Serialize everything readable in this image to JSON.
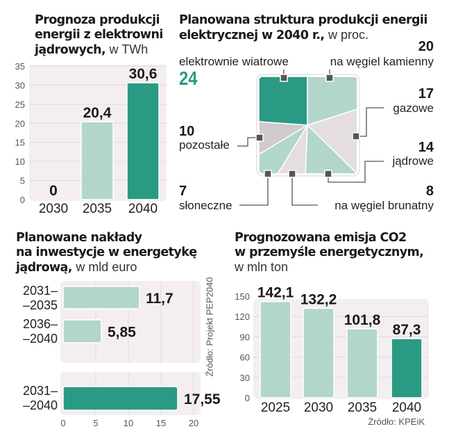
{
  "colors": {
    "dark": "#2a9a85",
    "light": "#b2d6cb",
    "grey_light": "#e4dee1",
    "grey_mid": "#d0cacd",
    "panel_bg": "#f4eef0",
    "grid": "#e2dadd",
    "marker": "#555555"
  },
  "chart_data": [
    {
      "id": "nuclear_production",
      "type": "bar",
      "title": "Prognoza produkcji energii z elektrowni jądrowych,",
      "title_lines": [
        "Prognoza produkcji",
        "energii z elektrowni",
        "jądrowych,"
      ],
      "unit": "w TWh",
      "categories": [
        "2030",
        "2035",
        "2040"
      ],
      "values": [
        0,
        20.4,
        30.6
      ],
      "value_labels": [
        "0",
        "20,4",
        "30,6"
      ],
      "highlight": [
        false,
        false,
        true
      ],
      "ylim": [
        0,
        35
      ],
      "yticks": [
        0,
        5,
        10,
        15,
        20,
        25,
        30,
        35
      ],
      "grid": true,
      "xlabel": "",
      "ylabel": ""
    },
    {
      "id": "energy_structure_2040",
      "type": "pie",
      "title": "Planowana struktura produkcji energii elektrycznej w 2040 r.,",
      "title_lines": [
        "Planowana struktura produkcji energii",
        "elektrycznej w 2040 r.,"
      ],
      "unit": "w proc.",
      "slices": [
        {
          "label": "elektrownie wiatrowe",
          "value": 24,
          "value_label": "24",
          "color": "dark"
        },
        {
          "label": "na węgiel kamienny",
          "value": 20,
          "value_label": "20",
          "color": "light"
        },
        {
          "label": "gazowe",
          "value": 17,
          "value_label": "17",
          "color": "grey_light"
        },
        {
          "label": "jądrowe",
          "value": 14,
          "value_label": "14",
          "color": "light"
        },
        {
          "label": "na węgiel brunatny",
          "value": 8,
          "value_label": "8",
          "color": "grey_light"
        },
        {
          "label": "słoneczne",
          "value": 7,
          "value_label": "7",
          "color": "light"
        },
        {
          "label": "pozostałe",
          "value": 10,
          "value_label": "10",
          "color": "grey_mid"
        }
      ]
    },
    {
      "id": "nuclear_investment",
      "type": "bar",
      "orientation": "horizontal",
      "title": "Planowane nakłady na inwestycje w energetykę jądrową,",
      "title_lines": [
        "Planowane nakłady",
        "na inwestycje w energetykę",
        "jądrową,"
      ],
      "unit": "w mld euro",
      "categories": [
        [
          "2031–",
          "–2035"
        ],
        [
          "2036–",
          "–2040"
        ],
        [
          "2031–",
          "–2040"
        ]
      ],
      "values": [
        11.7,
        5.85,
        17.55
      ],
      "value_labels": [
        "11,7",
        "5,85",
        "17,55"
      ],
      "highlight": [
        false,
        false,
        true
      ],
      "xlim": [
        0,
        20
      ],
      "xticks": [
        0,
        5,
        10,
        15,
        20
      ],
      "grid": true,
      "source": "Źródło: Projekt PEP2040"
    },
    {
      "id": "co2_emission",
      "type": "bar",
      "title": "Prognozowana emisja CO2 w przemyśle energetycznym,",
      "title_lines": [
        "Prognozowana emisja CO2",
        "w przemyśle energetycznym,"
      ],
      "unit": "w mln ton",
      "categories": [
        "2025",
        "2030",
        "2035",
        "2040"
      ],
      "values": [
        142.1,
        132.2,
        101.8,
        87.3
      ],
      "value_labels": [
        "142,1",
        "132,2",
        "101,8",
        "87,3"
      ],
      "highlight": [
        false,
        false,
        false,
        true
      ],
      "ylim": [
        0,
        150
      ],
      "yticks": [
        0,
        30,
        60,
        90,
        120,
        150
      ],
      "grid": true,
      "source": "Źródło: KPEiK"
    }
  ]
}
